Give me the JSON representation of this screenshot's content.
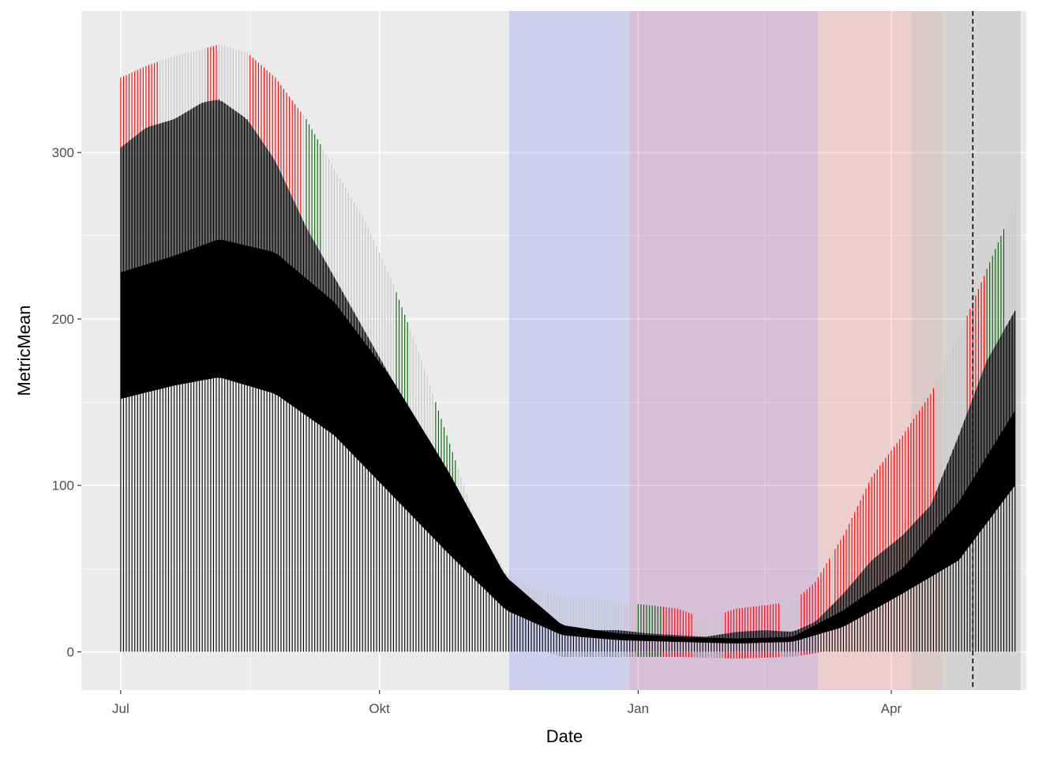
{
  "chart_data": {
    "type": "bar",
    "xlabel": "Date",
    "ylabel": "MetricMean",
    "x_range": [
      "2020-06-17",
      "2021-05-19"
    ],
    "ylim": [
      -23,
      385
    ],
    "x_ticks": [
      {
        "date": "2020-07-01",
        "label": "Jul"
      },
      {
        "date": "2020-10-01",
        "label": "Okt"
      },
      {
        "date": "2021-01-01",
        "label": "Jan"
      },
      {
        "date": "2021-04-01",
        "label": "Apr"
      }
    ],
    "y_ticks": [
      {
        "value": 0,
        "label": "0"
      },
      {
        "value": 100,
        "label": "100"
      },
      {
        "value": 200,
        "label": "200"
      },
      {
        "value": 300,
        "label": "300"
      }
    ],
    "grid": true,
    "background": "#ebebeb",
    "shaded_periods": [
      {
        "start": "2020-11-16",
        "end": "2020-12-29",
        "color": "#0000ff",
        "opacity": 0.12
      },
      {
        "start": "2020-12-29",
        "end": "2021-03-06",
        "color": "#800080",
        "opacity": 0.18
      },
      {
        "start": "2021-03-06",
        "end": "2021-04-08",
        "color": "#ff0000",
        "opacity": 0.12
      },
      {
        "start": "2021-04-08",
        "end": "2021-04-19",
        "color": "#800000",
        "opacity": 0.14
      },
      {
        "start": "2021-04-19",
        "end": "2021-05-17",
        "color": "#000000",
        "opacity": 0.1
      }
    ],
    "vline": {
      "date": "2021-04-30",
      "style": "dashed",
      "color": "#000000"
    },
    "series": [
      {
        "role": "upper_outer",
        "dates": [
          "2020-07-01",
          "2020-07-10",
          "2020-07-20",
          "2020-07-30",
          "2020-08-05",
          "2020-08-15",
          "2020-08-25",
          "2020-09-05",
          "2020-09-15",
          "2020-09-25",
          "2020-10-05",
          "2020-10-15",
          "2020-10-25",
          "2020-11-05",
          "2020-11-15",
          "2020-11-25",
          "2020-12-05",
          "2020-12-15",
          "2020-12-25",
          "2021-01-05",
          "2021-01-15",
          "2021-01-25",
          "2021-02-05",
          "2021-02-15",
          "2021-02-25",
          "2021-03-05",
          "2021-03-15",
          "2021-03-25",
          "2021-04-05",
          "2021-04-15",
          "2021-04-25",
          "2021-05-05",
          "2021-05-15"
        ],
        "values": [
          345,
          352,
          358,
          362,
          365,
          360,
          345,
          320,
          290,
          262,
          225,
          180,
          130,
          75,
          48,
          37,
          33,
          32,
          30,
          28,
          26,
          20,
          26,
          28,
          30,
          42,
          70,
          105,
          130,
          155,
          190,
          230,
          270
        ],
        "color": "#bfbfbf"
      },
      {
        "role": "upper_mid",
        "dates": [
          "2020-07-01",
          "2020-07-10",
          "2020-07-20",
          "2020-07-30",
          "2020-08-05",
          "2020-08-15",
          "2020-08-25",
          "2020-09-05",
          "2020-09-15",
          "2020-09-25",
          "2020-10-05",
          "2020-10-15",
          "2020-10-25",
          "2020-11-05",
          "2020-11-15",
          "2020-11-25",
          "2020-12-05",
          "2020-12-15",
          "2020-12-25",
          "2021-01-05",
          "2021-01-15",
          "2021-01-25",
          "2021-02-05",
          "2021-02-15",
          "2021-02-25",
          "2021-03-05",
          "2021-03-15",
          "2021-03-25",
          "2021-04-05",
          "2021-04-15",
          "2021-04-25",
          "2021-05-05",
          "2021-05-15"
        ],
        "values": [
          303,
          315,
          320,
          330,
          332,
          320,
          295,
          255,
          225,
          195,
          165,
          125,
          85,
          45,
          28,
          18,
          15,
          13,
          13,
          11,
          10,
          9,
          12,
          13,
          12,
          18,
          35,
          55,
          70,
          88,
          130,
          175,
          205
        ],
        "color": "#000000"
      },
      {
        "role": "center_band_top",
        "dates": [
          "2020-07-01",
          "2020-07-20",
          "2020-08-05",
          "2020-08-25",
          "2020-09-15",
          "2020-10-05",
          "2020-10-25",
          "2020-11-15",
          "2020-12-05",
          "2020-12-25",
          "2021-01-15",
          "2021-02-05",
          "2021-02-25",
          "2021-03-15",
          "2021-04-05",
          "2021-04-25",
          "2021-05-15"
        ],
        "values": [
          228,
          238,
          248,
          240,
          210,
          165,
          110,
          45,
          16,
          11,
          9,
          8,
          9,
          25,
          50,
          90,
          145
        ],
        "color": "#000000"
      },
      {
        "role": "center_band_bottom",
        "dates": [
          "2020-07-01",
          "2020-07-20",
          "2020-08-05",
          "2020-08-25",
          "2020-09-15",
          "2020-10-05",
          "2020-10-25",
          "2020-11-15",
          "2020-12-05",
          "2020-12-25",
          "2021-01-15",
          "2021-02-05",
          "2021-02-25",
          "2021-03-15",
          "2021-04-05",
          "2021-04-25",
          "2021-05-15"
        ],
        "values": [
          152,
          160,
          165,
          155,
          130,
          95,
          60,
          25,
          10,
          7,
          6,
          5,
          6,
          15,
          35,
          55,
          100
        ],
        "color": "#000000"
      },
      {
        "role": "lower_outer",
        "dates": [
          "2020-07-01",
          "2020-07-20",
          "2020-08-05",
          "2020-08-25",
          "2020-09-15",
          "2020-10-05",
          "2020-10-25",
          "2020-11-15",
          "2020-12-05",
          "2020-12-25",
          "2021-01-15",
          "2021-02-05",
          "2021-02-25",
          "2021-03-15",
          "2021-04-05",
          "2021-04-25",
          "2021-05-15"
        ],
        "values": [
          76,
          80,
          82,
          78,
          62,
          42,
          25,
          8,
          -3,
          -3,
          -3,
          -4,
          -3,
          2,
          12,
          28,
          50
        ],
        "color": "#000000"
      }
    ]
  }
}
